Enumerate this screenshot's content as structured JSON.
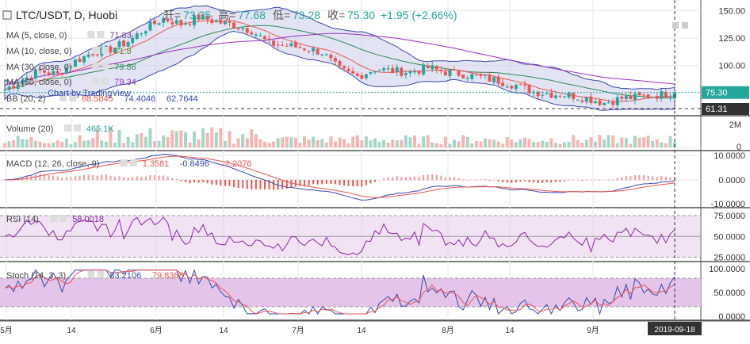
{
  "symbol": {
    "pair": "LTC/USDT",
    "interval": "D",
    "exchange": "Huobi"
  },
  "ohlc": {
    "open_label": "开=",
    "open": "73.35",
    "high_label": "高=",
    "high": "77.68",
    "low_label": "低=",
    "low": "73.28",
    "close_label": "收=",
    "close": "75.30",
    "change": "+1.95 (+2.66%)"
  },
  "indicators": {
    "ma5": {
      "label": "MA (5, close, 0)",
      "value": "71.83",
      "color": "#7b3f9e"
    },
    "ma10": {
      "label": "MA (10, close, 0)",
      "value": "71.8",
      "color": "#5b8c2a"
    },
    "ma30": {
      "label": "MA (30, close, 0)",
      "value": "79.86",
      "color": "#2e8b57"
    },
    "ma60": {
      "label": "MA (60, close, 0)",
      "value": "79.34",
      "color": "#9b30c0"
    },
    "bb": {
      "label": "BB (20, 2)",
      "v1": "68.5845",
      "v2": "74.4046",
      "v3": "62.7644"
    },
    "watermark": "Chart by TradingView",
    "volume": {
      "label": "Volume (20)",
      "value": "465.1K"
    },
    "macd": {
      "label": "MACD (12, 26, close, 9)",
      "v1": "1.3581",
      "v2": "-0.8496",
      "v3": "-2.2076"
    },
    "rsi": {
      "label": "RSI (14)",
      "value": "58.0018"
    },
    "stoch": {
      "label": "Stoch (14, 3, 3)",
      "v1": "83.2106",
      "v2": "79.8368"
    }
  },
  "axes": {
    "price": [
      "150.00",
      "125.00",
      "100.00"
    ],
    "price_current": "75.30",
    "price_low": "61.31",
    "volume": [
      "2M",
      "0"
    ],
    "macd": [
      "10.0000",
      "0.0000",
      "-10.0000"
    ],
    "rsi": [
      "75.0000",
      "50.0000",
      "25.0000"
    ],
    "stoch": [
      "100.0000",
      "50.0000",
      "0.0000"
    ],
    "dates": [
      "5月",
      "14",
      "6月",
      "14",
      "7月",
      "14",
      "8月",
      "14",
      "9月"
    ],
    "crosshair_date": "2019-09-18"
  },
  "colors": {
    "up": "#26a69a",
    "down": "#ef5350",
    "grid": "#e6e6e6",
    "bb_fill": "#c5cae9",
    "osc_fill": "#e1bee7"
  },
  "chart_data": {
    "type": "candlestick",
    "x_range": [
      "2019-05-01",
      "2019-09-18"
    ],
    "price_ylim": [
      57,
      157
    ],
    "price_path": [
      [
        0,
        78
      ],
      [
        4,
        87
      ],
      [
        8,
        95
      ],
      [
        12,
        92
      ],
      [
        16,
        104
      ],
      [
        20,
        112
      ],
      [
        24,
        115
      ],
      [
        28,
        122
      ],
      [
        32,
        134
      ],
      [
        36,
        143
      ],
      [
        40,
        138
      ],
      [
        44,
        144
      ],
      [
        48,
        140
      ],
      [
        52,
        137
      ],
      [
        56,
        132
      ],
      [
        60,
        120
      ],
      [
        64,
        118
      ],
      [
        68,
        116
      ],
      [
        72,
        112
      ],
      [
        76,
        96
      ],
      [
        80,
        90
      ],
      [
        84,
        97
      ],
      [
        88,
        95
      ],
      [
        92,
        94
      ],
      [
        96,
        98
      ],
      [
        100,
        94
      ],
      [
        104,
        92
      ],
      [
        108,
        89
      ],
      [
        112,
        86
      ],
      [
        116,
        82
      ],
      [
        120,
        76
      ],
      [
        124,
        74
      ],
      [
        128,
        73
      ],
      [
        132,
        70
      ],
      [
        136,
        66
      ],
      [
        140,
        70
      ],
      [
        144,
        71
      ],
      [
        148,
        73
      ],
      [
        152,
        75
      ]
    ],
    "last_close": 75.3
  }
}
